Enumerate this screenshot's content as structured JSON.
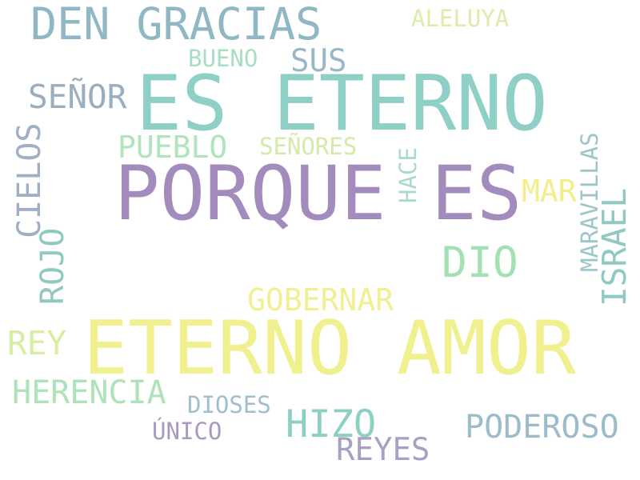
{
  "words": {
    "es_eterno": {
      "text": "ES ETERNO",
      "color": "#8ecfc6"
    },
    "porque_es": {
      "text": "PORQUE ES",
      "color": "#a48bbd"
    },
    "eterno_amor": {
      "text": "ETERNO AMOR",
      "color": "#f1f08f"
    },
    "den_gracias": {
      "text": "DEN GRACIAS",
      "color": "#8fb8c4"
    },
    "aleluya": {
      "text": "ALELUYA",
      "color": "#dcedaa"
    },
    "bueno": {
      "text": "BUENO",
      "color": "#a7dfc5"
    },
    "sus": {
      "text": "SUS",
      "color": "#9ab7c6"
    },
    "senor": {
      "text": "SEÑOR",
      "color": "#9aaec0"
    },
    "pueblo": {
      "text": "PUEBLO",
      "color": "#b0e4bd"
    },
    "senores": {
      "text": "SEÑORES",
      "color": "#d3eaa8"
    },
    "hace": {
      "text": "HACE",
      "color": "#a9dcc4"
    },
    "mar": {
      "text": "MAR",
      "color": "#f2ef8a"
    },
    "maravillas": {
      "text": "MARAVILLAS",
      "color": "#9cc6c8"
    },
    "cielos": {
      "text": "CIELOS",
      "color": "#9fb0c6"
    },
    "rojo": {
      "text": "ROJO",
      "color": "#8fc9c0"
    },
    "israel": {
      "text": "ISRAEL",
      "color": "#8fc9c0"
    },
    "dio": {
      "text": "DIO",
      "color": "#a3e0b4"
    },
    "gobernar": {
      "text": "GOBERNAR",
      "color": "#f2ef92"
    },
    "rey": {
      "text": "REY",
      "color": "#d6eea2"
    },
    "herencia": {
      "text": "HERENCIA",
      "color": "#aee3b8"
    },
    "dioses": {
      "text": "DIOSES",
      "color": "#9fbfcc"
    },
    "unico": {
      "text": "ÚNICO",
      "color": "#a898c2"
    },
    "hizo": {
      "text": "HIZO",
      "color": "#8ccfc3"
    },
    "reyes": {
      "text": "REYES",
      "color": "#a89fc2"
    },
    "poderoso": {
      "text": "PODEROSO",
      "color": "#9bbcc8"
    }
  }
}
